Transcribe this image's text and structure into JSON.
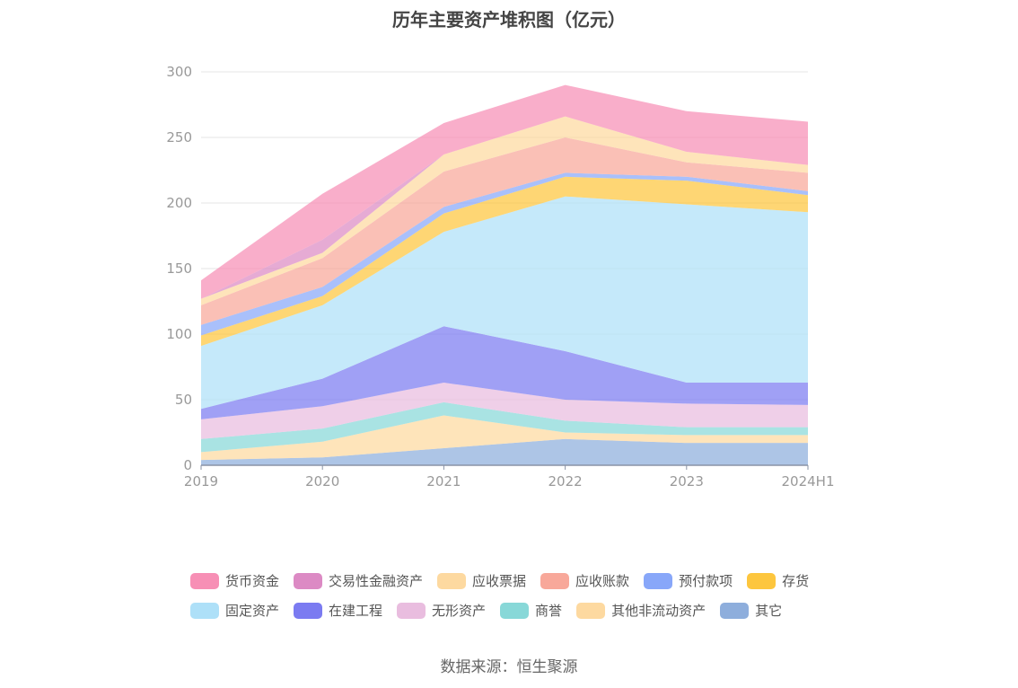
{
  "chart_data": {
    "type": "area",
    "stacked": true,
    "title": "历年主要资产堆积图（亿元）",
    "categories": [
      "2019",
      "2020",
      "2021",
      "2022",
      "2023",
      "2024H1"
    ],
    "y_ticks": [
      "0",
      "50",
      "100",
      "150",
      "200",
      "250",
      "300"
    ],
    "ylim": [
      0,
      300
    ],
    "grid": true,
    "legend_position": "bottom",
    "series": [
      {
        "name": "其它",
        "color": "#8eaedc",
        "values": [
          4,
          6,
          13,
          20,
          17,
          17
        ]
      },
      {
        "name": "其他非流动资产",
        "color": "#fdd9a0",
        "values": [
          6,
          12,
          25,
          5,
          6,
          6
        ]
      },
      {
        "name": "商誉",
        "color": "#88d8d8",
        "values": [
          10,
          10,
          10,
          9,
          6,
          6
        ]
      },
      {
        "name": "无形资产",
        "color": "#e9bddf",
        "values": [
          15,
          17,
          15,
          16,
          18,
          17
        ]
      },
      {
        "name": "在建工程",
        "color": "#7b7bf1",
        "values": [
          8,
          21,
          43,
          37,
          16,
          17
        ]
      },
      {
        "name": "固定资产",
        "color": "#aee0f8",
        "values": [
          48,
          56,
          72,
          118,
          136,
          130
        ]
      },
      {
        "name": "存货",
        "color": "#fdc63e",
        "values": [
          8,
          7,
          14,
          15,
          18,
          13
        ]
      },
      {
        "name": "预付款项",
        "color": "#88a7f9",
        "values": [
          8,
          7,
          5,
          3,
          3,
          3
        ]
      },
      {
        "name": "应收账款",
        "color": "#f8a89a",
        "values": [
          15,
          22,
          27,
          27,
          11,
          14
        ]
      },
      {
        "name": "应收票据",
        "color": "#fdd9a0",
        "values": [
          5,
          4,
          13,
          16,
          8,
          6
        ]
      },
      {
        "name": "交易性金融资产",
        "color": "#dc8ac4",
        "values": [
          0,
          10,
          0,
          0,
          0,
          0
        ]
      },
      {
        "name": "货币资金",
        "color": "#f78fb5",
        "values": [
          14,
          35,
          24,
          24,
          31,
          33
        ]
      }
    ]
  },
  "legend": {
    "row1": [
      {
        "label": "货币资金",
        "color": "#f78fb5"
      },
      {
        "label": "交易性金融资产",
        "color": "#dc8ac4"
      },
      {
        "label": "应收票据",
        "color": "#fdd9a0"
      },
      {
        "label": "应收账款",
        "color": "#f8a89a"
      },
      {
        "label": "预付款项",
        "color": "#88a7f9"
      },
      {
        "label": "存货",
        "color": "#fdc63e"
      }
    ],
    "row2": [
      {
        "label": "固定资产",
        "color": "#aee0f8"
      },
      {
        "label": "在建工程",
        "color": "#7b7bf1"
      },
      {
        "label": "无形资产",
        "color": "#e9bddf"
      },
      {
        "label": "商誉",
        "color": "#88d8d8"
      },
      {
        "label": "其他非流动资产",
        "color": "#fdd9a0"
      },
      {
        "label": "其它",
        "color": "#8eaedc"
      }
    ]
  },
  "source": "数据来源：恒生聚源"
}
